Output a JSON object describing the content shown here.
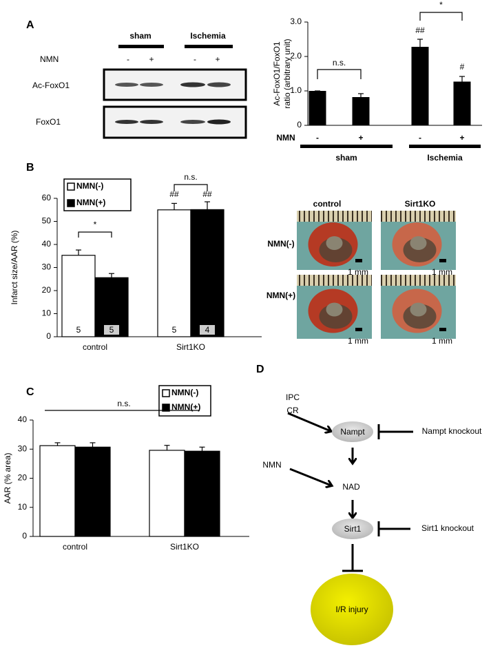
{
  "panel_labels": {
    "a": "A",
    "b": "B",
    "c": "C",
    "d": "D"
  },
  "blot": {
    "groups": [
      "sham",
      "Ischemia"
    ],
    "row_label": "NMN",
    "lanes": [
      "-",
      "+",
      "-",
      "+"
    ],
    "bands": [
      "Ac-FoxO1",
      "FoxO1"
    ]
  },
  "chart_data": [
    {
      "type": "bar",
      "ylabel": [
        "Ac-FoxO1/FoxO1",
        "ratio (arbitrary unit)"
      ],
      "ylim": [
        0,
        3
      ],
      "yticks": [
        0,
        {
          "value": 1,
          "label": "1.0"
        },
        {
          "value": 2,
          "label": "2.0"
        },
        {
          "value": 3,
          "label": "3.0"
        }
      ],
      "row_label": "NMN",
      "categories": [
        "-",
        "+",
        "-",
        "+"
      ],
      "groups": [
        "sham",
        "Ischemia"
      ],
      "values": [
        1.0,
        0.82,
        2.28,
        1.27
      ],
      "errors": [
        0,
        0.1,
        0.22,
        0.15
      ],
      "color": "#000000",
      "annotations": [
        "n.s.",
        "*",
        "##",
        "#"
      ]
    },
    {
      "type": "grouped-bar",
      "ylabel": "Infarct size/AAR (%)",
      "ylim": [
        0,
        60
      ],
      "yticks": [
        0,
        10,
        20,
        30,
        40,
        50,
        60
      ],
      "categories": [
        "control",
        "Sirt1KO"
      ],
      "series": [
        {
          "name": "NMN(-)",
          "color": "#ffffff",
          "values": [
            35.3,
            55.0
          ],
          "errors": [
            2.3,
            2.8
          ],
          "n": [
            5,
            5
          ]
        },
        {
          "name": "NMN(+)",
          "color": "#000000",
          "values": [
            25.6,
            55.1
          ],
          "errors": [
            1.8,
            3.4
          ],
          "n": [
            5,
            4
          ]
        }
      ],
      "annotations": [
        "*",
        "n.s.",
        "##",
        "##"
      ]
    },
    {
      "type": "grouped-bar",
      "ylabel": "AAR (% area)",
      "ylim": [
        0,
        40
      ],
      "yticks": [
        0,
        10,
        20,
        30,
        40
      ],
      "categories": [
        "control",
        "Sirt1KO"
      ],
      "series": [
        {
          "name": "NMN(-)",
          "color": "#ffffff",
          "values": [
            31.2,
            29.6
          ],
          "errors": [
            1.0,
            1.7
          ]
        },
        {
          "name": "NMN(+)",
          "color": "#000000",
          "values": [
            30.7,
            29.3
          ],
          "errors": [
            1.5,
            1.4
          ]
        }
      ],
      "annotations": [
        "n.s."
      ]
    }
  ],
  "photos": {
    "columns": [
      "control",
      "Sirt1KO"
    ],
    "rows": [
      "NMN(-)",
      "NMN(+)"
    ],
    "scale": [
      "1 mm",
      "1 mm",
      "1 mm",
      "1 mm"
    ]
  },
  "diagram": {
    "nodes": [
      "IPC",
      "CR",
      "Nampt",
      "Nampt knockout",
      "NMN",
      "NAD",
      "Sirt1",
      "Sirt1 knockout",
      "I/R injury"
    ]
  }
}
